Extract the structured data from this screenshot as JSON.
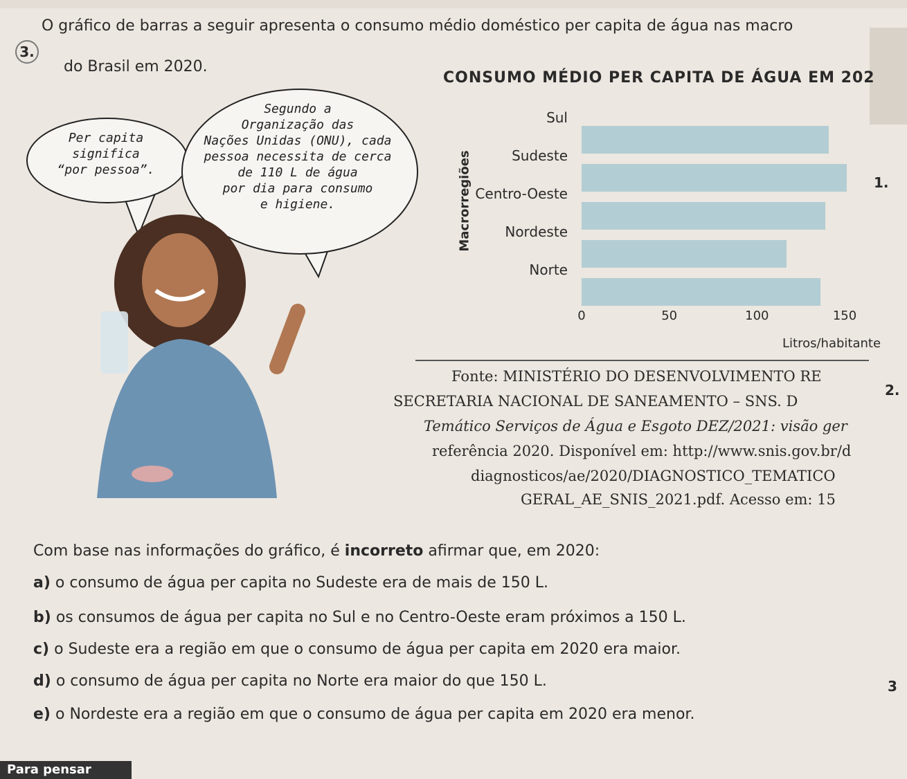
{
  "question": {
    "number": "3.",
    "line1": "O gráfico de barras a seguir apresenta o consumo médio doméstico per capita de água nas macro",
    "line2": "do Brasil em 2020."
  },
  "bubbles": {
    "left": "Per capita\nsignifica\n“por pessoa”.",
    "right": "Segundo a\nOrganização das\nNações Unidas (ONU), cada\npessoa necessita de cerca\nde 110 L de água\npor dia para consumo\ne higiene."
  },
  "chart_data": {
    "type": "bar",
    "orientation": "horizontal",
    "title": "CONSUMO MÉDIO PER CAPITA DE ÁGUA EM 202",
    "ylabel": "Macrorregiões",
    "xlabel": "Litros/habitante",
    "categories": [
      "Sul",
      "Sudeste",
      "Centro-Oeste",
      "Nordeste",
      "Norte"
    ],
    "values": [
      141,
      151,
      139,
      117,
      136
    ],
    "xticks": [
      "0",
      "50",
      "100",
      "150"
    ],
    "xlim": [
      0,
      150
    ],
    "grid": false,
    "bar_color": "#b3cdd4"
  },
  "source": {
    "line1": "Fonte: MINISTÉRIO DO DESENVOLVIMENTO RE",
    "line2": "SECRETARIA NACIONAL DE SANEAMENTO – SNS. D",
    "line3": "Temático Serviços de Água e Esgoto DEZ/2021: visão ger",
    "line4": "referência 2020. Disponível em: http://www.snis.gov.br/d",
    "line5": "diagnosticos/ae/2020/DIAGNOSTICO_TEMATICO",
    "line6": "GERAL_AE_SNIS_2021.pdf. Acesso em: 15"
  },
  "prompt": {
    "before": "Com base nas informações do gráfico, é ",
    "emphasis": "incorreto",
    "after": " afirmar que, em 2020:"
  },
  "options": [
    {
      "letter": "a)",
      "text": "o consumo de água per capita no Sudeste era de mais de 150 L."
    },
    {
      "letter": "b)",
      "text": "os consumos de água per capita no Sul e no Centro-Oeste eram próximos a 150 L."
    },
    {
      "letter": "c)",
      "text": "o Sudeste era a região em que o consumo de água per capita em 2020 era maior."
    },
    {
      "letter": "d)",
      "text": "o consumo de água per capita no Norte era maior do que 150 L."
    },
    {
      "letter": "e)",
      "text": "o Nordeste era a região em que o consumo de água per capita em 2020 era menor."
    }
  ],
  "margin_numbers": [
    "1.",
    "2.",
    "3"
  ],
  "footer": "Para pensar"
}
